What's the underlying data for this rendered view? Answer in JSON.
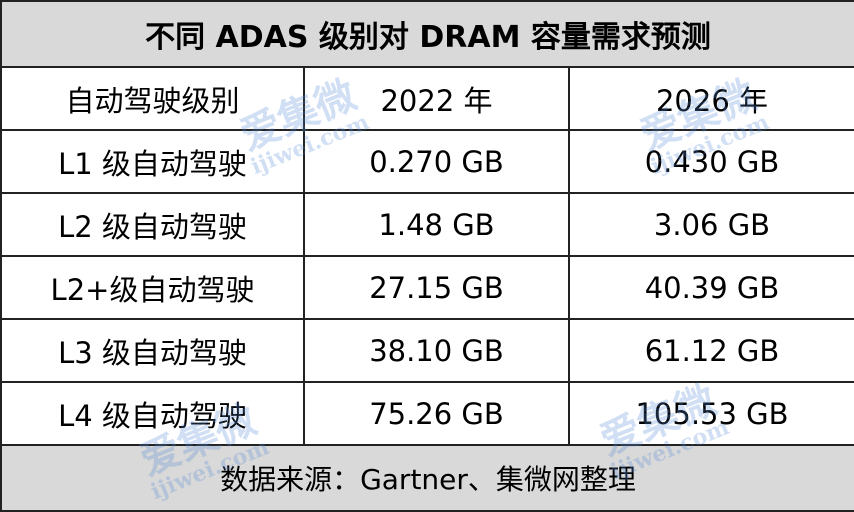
{
  "title": "不同 ADAS 级别对 DRAM 容量需求预测",
  "table": {
    "header": [
      "自动驾驶级别",
      "2022 年",
      "2026 年"
    ],
    "rows": [
      [
        "L1 级自动驾驶",
        "0.270 GB",
        "0.430 GB"
      ],
      [
        "L2 级自动驾驶",
        "1.48 GB",
        "3.06 GB"
      ],
      [
        "L2+级自动驾驶",
        "27.15 GB",
        "40.39 GB"
      ],
      [
        "L3 级自动驾驶",
        "38.10 GB",
        "61.12 GB"
      ],
      [
        "L4 级自动驾驶",
        "75.26 GB",
        "105.53 GB"
      ]
    ]
  },
  "source": "数据来源：Gartner、集微网整理",
  "watermark": {
    "name": "爱集微",
    "site": "ijiwei.com"
  }
}
